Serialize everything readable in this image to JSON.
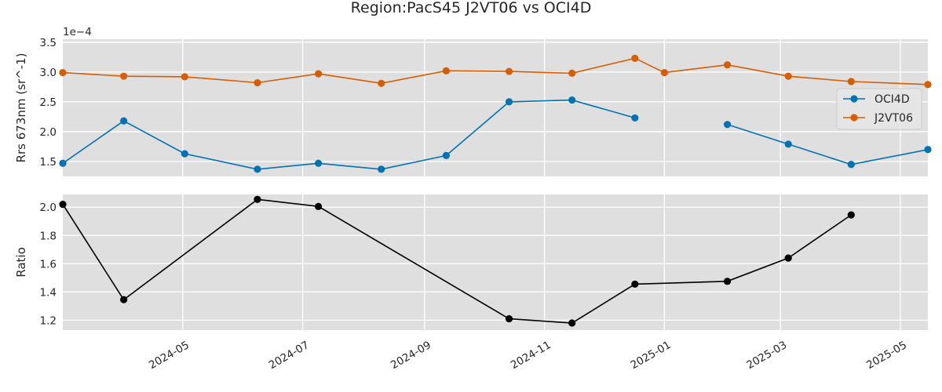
{
  "chart_data": [
    {
      "type": "line",
      "title": "Region:PacS45 J2VT06 vs OCI4D",
      "ylabel": "Rrs 673nm (sr^-1)",
      "y_offset_label": "1e−4",
      "y_scale_factor": 0.0001,
      "ylim": [
        1.25,
        3.55
      ],
      "yticks": [
        1.5,
        2.0,
        2.5,
        3.0,
        3.5
      ],
      "ytick_labels": [
        "1.5",
        "2.0",
        "2.5",
        "3.0",
        "3.5"
      ],
      "grid": true,
      "legend_position": "center-right",
      "series": [
        {
          "name": "OCI4D",
          "color": "#0072B2",
          "points": [
            {
              "x": "2024-03-01",
              "y": 1.47
            },
            {
              "x": "2024-04-01",
              "y": 2.18
            },
            {
              "x": "2024-05-02",
              "y": 1.63
            },
            {
              "x": "2024-06-08",
              "y": 1.37
            },
            {
              "x": "2024-07-09",
              "y": 1.47
            },
            {
              "x": "2024-08-10",
              "y": 1.37
            },
            {
              "x": "2024-09-12",
              "y": 1.6
            },
            {
              "x": "2024-10-14",
              "y": 2.5
            },
            {
              "x": "2024-11-15",
              "y": 2.53
            },
            {
              "x": "2024-12-17",
              "y": 2.23
            },
            {
              "x": "2025-01-01",
              "y": null
            },
            {
              "x": "2025-02-02",
              "y": 2.12
            },
            {
              "x": "2025-03-05",
              "y": 1.79
            },
            {
              "x": "2025-04-06",
              "y": 1.45
            },
            {
              "x": "2025-05-15",
              "y": 1.7
            }
          ]
        },
        {
          "name": "J2VT06",
          "color": "#D55E00",
          "points": [
            {
              "x": "2024-03-01",
              "y": 2.99
            },
            {
              "x": "2024-04-01",
              "y": 2.93
            },
            {
              "x": "2024-05-02",
              "y": 2.92
            },
            {
              "x": "2024-06-08",
              "y": 2.82
            },
            {
              "x": "2024-07-09",
              "y": 2.97
            },
            {
              "x": "2024-08-10",
              "y": 2.81
            },
            {
              "x": "2024-09-12",
              "y": 3.02
            },
            {
              "x": "2024-10-14",
              "y": 3.01
            },
            {
              "x": "2024-11-15",
              "y": 2.98
            },
            {
              "x": "2024-12-17",
              "y": 3.23
            },
            {
              "x": "2025-01-01",
              "y": 2.99
            },
            {
              "x": "2025-02-02",
              "y": 3.12
            },
            {
              "x": "2025-03-05",
              "y": 2.93
            },
            {
              "x": "2025-04-06",
              "y": 2.84
            },
            {
              "x": "2025-05-15",
              "y": 2.79
            }
          ]
        }
      ]
    },
    {
      "type": "line",
      "ylabel": "Ratio",
      "ylim": [
        1.13,
        2.09
      ],
      "yticks": [
        1.2,
        1.4,
        1.6,
        1.8,
        2.0
      ],
      "ytick_labels": [
        "1.2",
        "1.4",
        "1.6",
        "1.8",
        "2.0"
      ],
      "grid": true,
      "series": [
        {
          "color": "#000000",
          "points": [
            {
              "x": "2024-03-01",
              "y": 2.02
            },
            {
              "x": "2024-04-01",
              "y": 1.345
            },
            {
              "x": "2024-06-08",
              "y": 2.055
            },
            {
              "x": "2024-07-09",
              "y": 2.005
            },
            {
              "x": "2024-10-14",
              "y": 1.21
            },
            {
              "x": "2024-11-15",
              "y": 1.18
            },
            {
              "x": "2024-12-17",
              "y": 1.455
            },
            {
              "x": "2025-02-02",
              "y": 1.475
            },
            {
              "x": "2025-03-05",
              "y": 1.64
            },
            {
              "x": "2025-04-06",
              "y": 1.945
            }
          ]
        }
      ]
    }
  ],
  "x_axis": {
    "xlim": [
      "2024-03-01",
      "2025-05-15"
    ],
    "ticks": [
      "2024-05-01",
      "2024-07-01",
      "2024-09-01",
      "2024-11-01",
      "2025-01-01",
      "2025-03-01",
      "2025-05-01"
    ],
    "tick_labels": [
      "2024-05",
      "2024-07",
      "2024-09",
      "2024-11",
      "2025-01",
      "2025-03",
      "2025-05"
    ]
  }
}
